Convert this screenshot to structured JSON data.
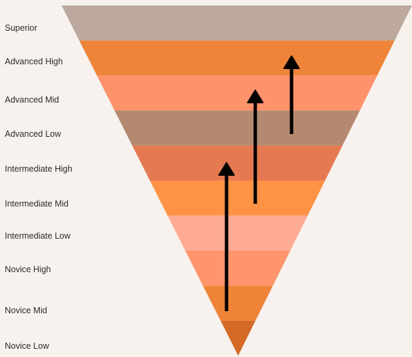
{
  "levels": [
    {
      "label": "Superior",
      "color": "#bca89d"
    },
    {
      "label": "Advanced High",
      "color": "#ee8439"
    },
    {
      "label": "Advanced Mid",
      "color": "#fe926b"
    },
    {
      "label": "Advanced Low",
      "color": "#b38a70"
    },
    {
      "label": "Intermediate High",
      "color": "#e57a52"
    },
    {
      "label": "Intermediate Mid",
      "color": "#fe9346"
    },
    {
      "label": "Intermediate Low",
      "color": "#ffab94"
    },
    {
      "label": "Novice High",
      "color": "#fe956c"
    },
    {
      "label": "Novice Mid",
      "color": "#ef8439"
    },
    {
      "label": "Novice Low",
      "color": "#d56a26"
    }
  ],
  "arrows": [
    {
      "from": "Novice Mid",
      "to": "Intermediate High"
    },
    {
      "from": "Intermediate Mid",
      "to": "Advanced Mid"
    },
    {
      "from": "Advanced Low",
      "to": "Advanced High"
    }
  ],
  "colors": {
    "background": "#f7f2ee",
    "arrow": "#000000",
    "label": "#2b2b2b"
  }
}
